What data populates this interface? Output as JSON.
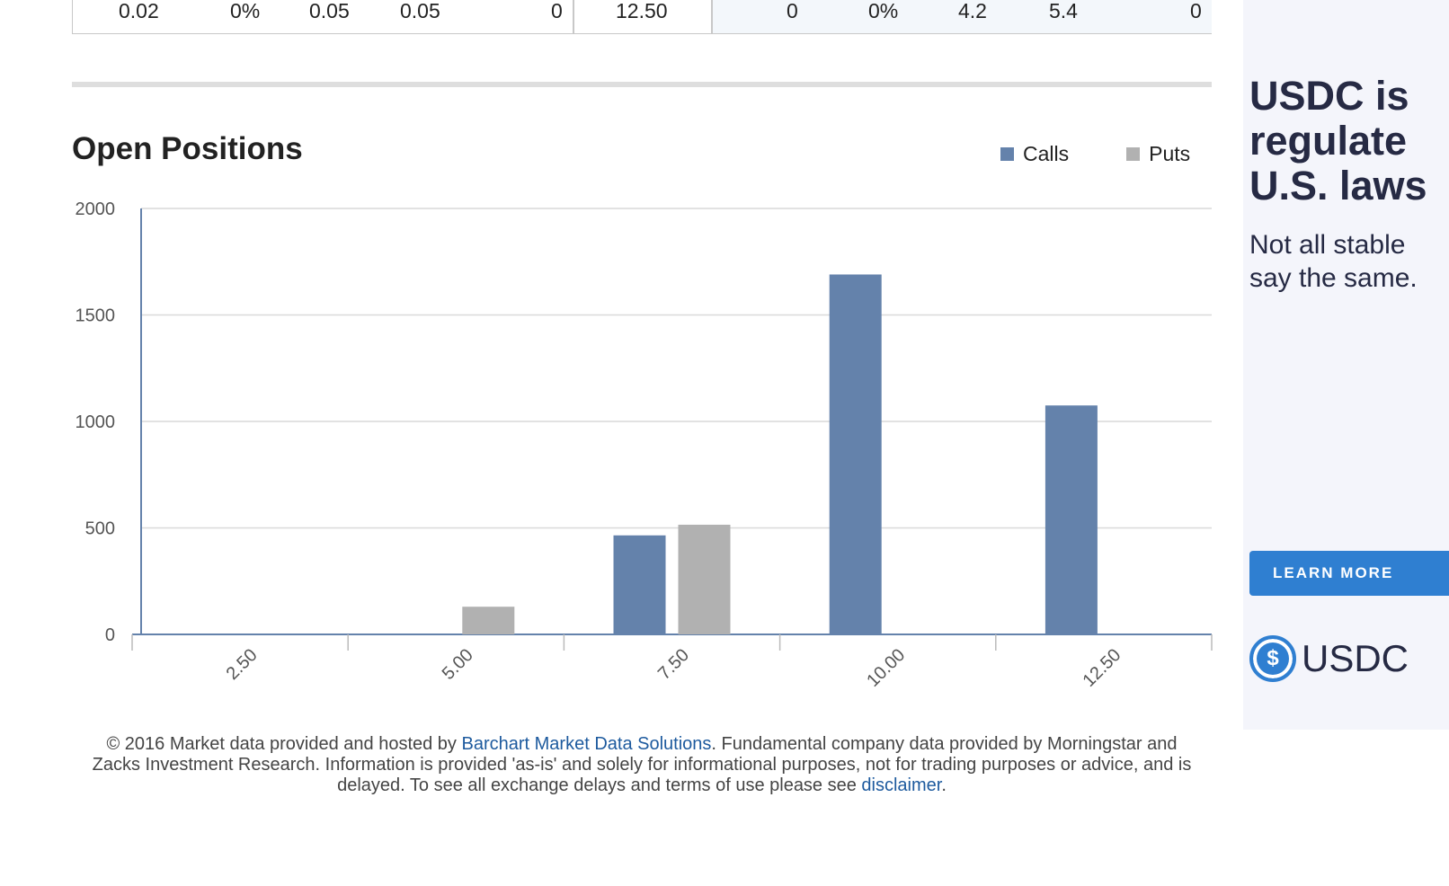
{
  "table_row": {
    "cells": [
      "0.02",
      "0%",
      "0.05",
      "0.05",
      "0",
      "12.50",
      "0",
      "0%",
      "4.2",
      "5.4",
      "0"
    ]
  },
  "section": {
    "title": "Open Positions"
  },
  "legend": [
    {
      "label": "Calls",
      "color": "#6482ab"
    },
    {
      "label": "Puts",
      "color": "#b1b1b1"
    }
  ],
  "chart_data": {
    "type": "bar",
    "categories": [
      "2.50",
      "5.00",
      "7.50",
      "10.00",
      "12.50"
    ],
    "series": [
      {
        "name": "Calls",
        "color": "#6482ab",
        "values": [
          0,
          0,
          465,
          1690,
          1075
        ]
      },
      {
        "name": "Puts",
        "color": "#b1b1b1",
        "values": [
          0,
          130,
          515,
          0,
          0
        ]
      }
    ],
    "yticks": [
      0,
      500,
      1000,
      1500,
      2000
    ],
    "ylim": [
      0,
      2000
    ],
    "grid": true,
    "legend_position": "top-right"
  },
  "footer": {
    "pre": "© 2016 Market data provided and hosted by ",
    "link1": "Barchart Market Data Solutions",
    "mid": ". Fundamental company data provided by Morningstar and Zacks Investment Research. Information is provided 'as-is' and solely for informational purposes, not for trading purposes or advice, and is delayed. To see all exchange delays and terms of use please see ",
    "link2": "disclaimer",
    "post": "."
  },
  "ad": {
    "headline": "USDC is\nregulate\nU.S. laws",
    "sub": "Not all stable\nsay the same.",
    "button": "LEARN MORE",
    "logo_symbol": "$",
    "logo_text": "USDC"
  }
}
